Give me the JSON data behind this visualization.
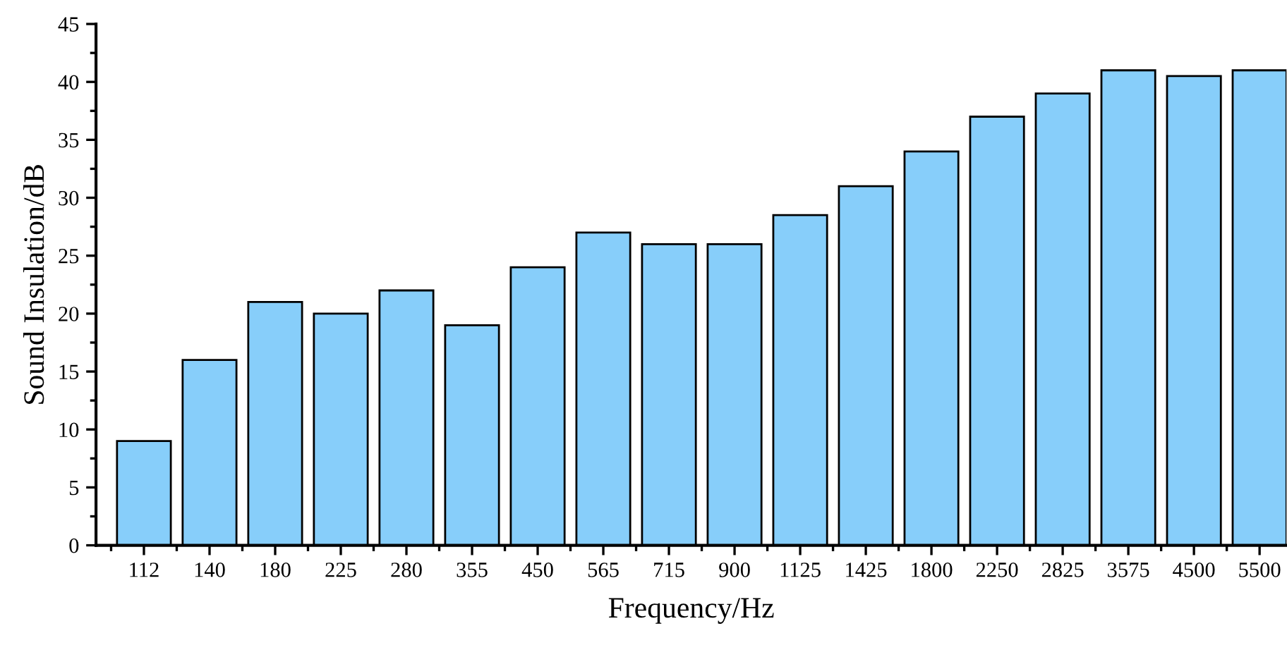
{
  "chart_data": {
    "type": "bar",
    "xlabel": "Frequency/Hz",
    "ylabel": "Sound Insulation/dB",
    "categories": [
      "112",
      "140",
      "180",
      "225",
      "280",
      "355",
      "450",
      "565",
      "715",
      "900",
      "1125",
      "1425",
      "1800",
      "2250",
      "2825",
      "3575",
      "4500",
      "5500"
    ],
    "values": [
      9,
      16,
      21,
      20,
      22,
      19,
      24,
      27,
      26,
      26,
      28.5,
      31,
      34,
      37,
      39,
      41,
      40.5,
      41
    ],
    "color": "#87cefa",
    "ylim": [
      0,
      45
    ],
    "yticks": [
      0,
      5,
      10,
      15,
      20,
      25,
      30,
      35,
      40,
      45
    ],
    "grid": false
  }
}
